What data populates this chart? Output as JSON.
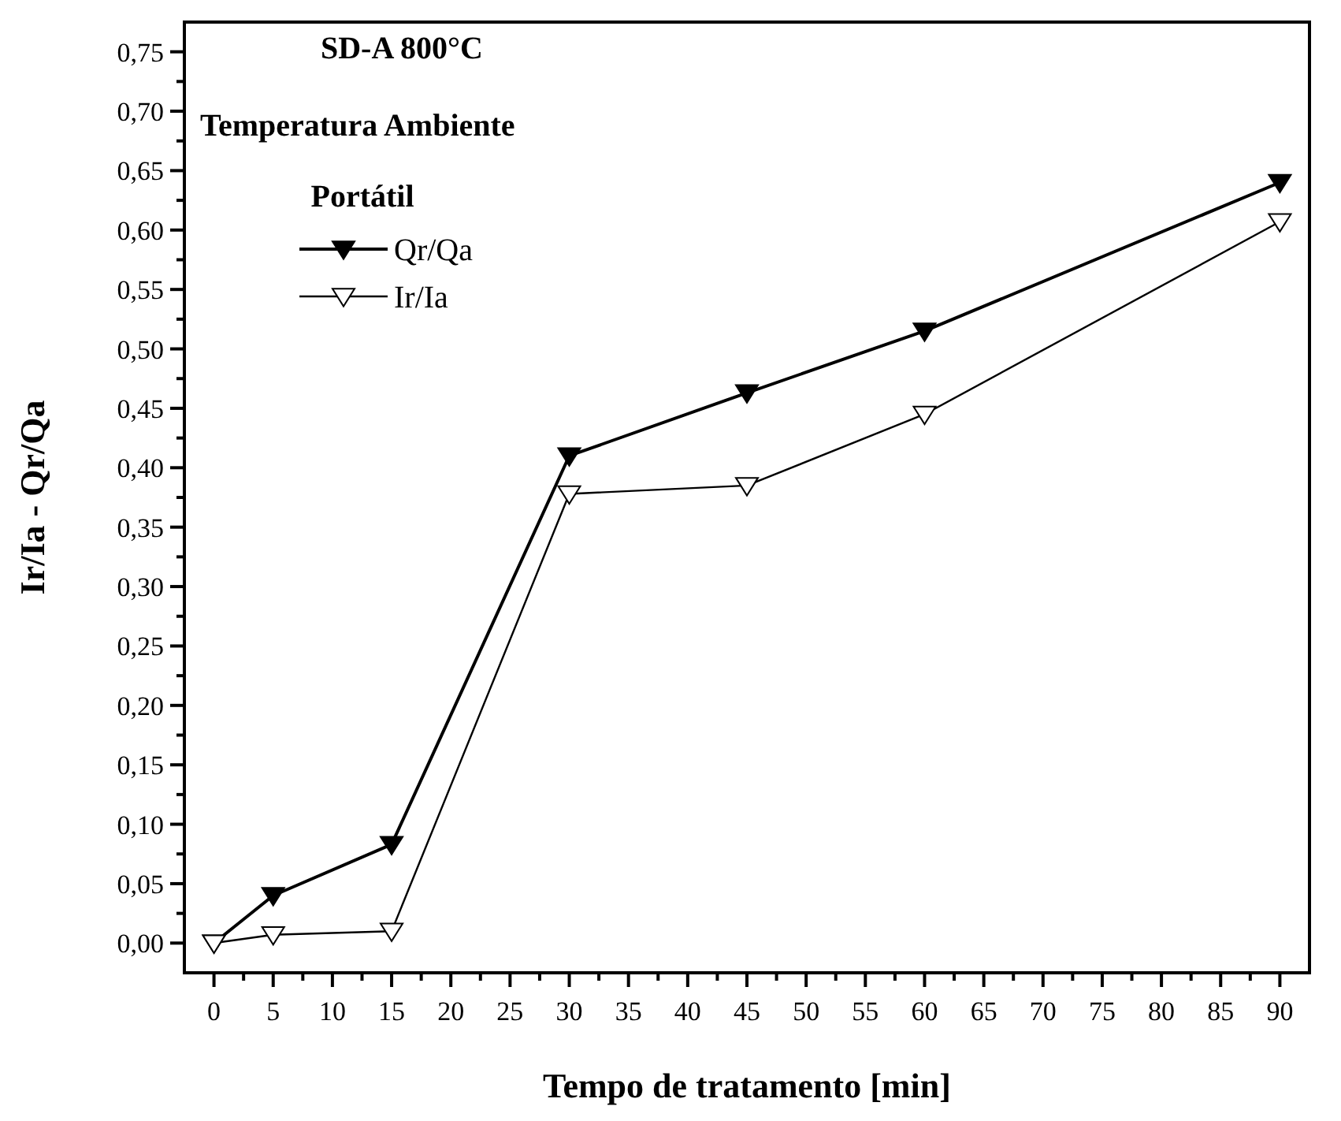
{
  "chart_data": {
    "type": "line",
    "xlabel": "Tempo de tratamento [min]",
    "ylabel": "Ir/Ia - Qr/Qa",
    "legend_title": "Portátil",
    "legend": "top left",
    "annotations": [
      "SD-A 800°C",
      "Temperatura Ambiente"
    ],
    "x": [
      0,
      5,
      15,
      30,
      45,
      60,
      90
    ],
    "series": [
      {
        "name": "Qr/Qa",
        "color": "#000000",
        "marker": "triangle-down-filled",
        "values": [
          0,
          0.04,
          0.083,
          0.41,
          0.463,
          0.515,
          0.64
        ]
      },
      {
        "name": "Ir/Ia",
        "color": "#000000",
        "marker": "triangle-down-open",
        "values": [
          0,
          0.007,
          0.01,
          0.378,
          0.385,
          0.445,
          0.607
        ]
      }
    ],
    "xlim": [
      -2.5,
      92.5
    ],
    "xticks": [
      0,
      {
        "value": 2.5,
        "label": null
      },
      5,
      {
        "value": 7.5,
        "label": null
      },
      10,
      {
        "value": 12.5,
        "label": null
      },
      15,
      {
        "value": 17.5,
        "label": null
      },
      20,
      {
        "value": 22.5,
        "label": null
      },
      25,
      {
        "value": 27.5,
        "label": null
      },
      30,
      {
        "value": 32.5,
        "label": null
      },
      35,
      {
        "value": 37.5,
        "label": null
      },
      40,
      {
        "value": 42.5,
        "label": null
      },
      45,
      {
        "value": 47.5,
        "label": null
      },
      50,
      {
        "value": 52.5,
        "label": null
      },
      55,
      {
        "value": 57.5,
        "label": null
      },
      60,
      {
        "value": 62.5,
        "label": null
      },
      65,
      {
        "value": 67.5,
        "label": null
      },
      70,
      {
        "value": 72.5,
        "label": null
      },
      75,
      {
        "value": 77.5,
        "label": null
      },
      80,
      {
        "value": 82.5,
        "label": null
      },
      85,
      {
        "value": 87.5,
        "label": null
      },
      90
    ],
    "ylim": [
      -0.025,
      0.775
    ],
    "yticks": [
      {
        "value": 0,
        "label": "0,00"
      },
      {
        "value": 0.025,
        "label": null
      },
      {
        "value": 0.05,
        "label": "0,05"
      },
      {
        "value": 0.075,
        "label": null
      },
      {
        "value": 0.1,
        "label": "0,10"
      },
      {
        "value": 0.125,
        "label": null
      },
      {
        "value": 0.15,
        "label": "0,15"
      },
      {
        "value": 0.175,
        "label": null
      },
      {
        "value": 0.2,
        "label": "0,20"
      },
      {
        "value": 0.225,
        "label": null
      },
      {
        "value": 0.25,
        "label": "0,25"
      },
      {
        "value": 0.275,
        "label": null
      },
      {
        "value": 0.3,
        "label": "0,30"
      },
      {
        "value": 0.325,
        "label": null
      },
      {
        "value": 0.35,
        "label": "0,35"
      },
      {
        "value": 0.375,
        "label": null
      },
      {
        "value": 0.4,
        "label": "0,40"
      },
      {
        "value": 0.425,
        "label": null
      },
      {
        "value": 0.45,
        "label": "0,45"
      },
      {
        "value": 0.475,
        "label": null
      },
      {
        "value": 0.5,
        "label": "0,50"
      },
      {
        "value": 0.525,
        "label": null
      },
      {
        "value": 0.55,
        "label": "0,55"
      },
      {
        "value": 0.575,
        "label": null
      },
      {
        "value": 0.6,
        "label": "0,60"
      },
      {
        "value": 0.625,
        "label": null
      },
      {
        "value": 0.65,
        "label": "0,65"
      },
      {
        "value": 0.675,
        "label": null
      },
      {
        "value": 0.7,
        "label": "0,70"
      },
      {
        "value": 0.725,
        "label": null
      },
      {
        "value": 0.75,
        "label": "0,75"
      }
    ],
    "grid": false,
    "line_style": "solid"
  }
}
